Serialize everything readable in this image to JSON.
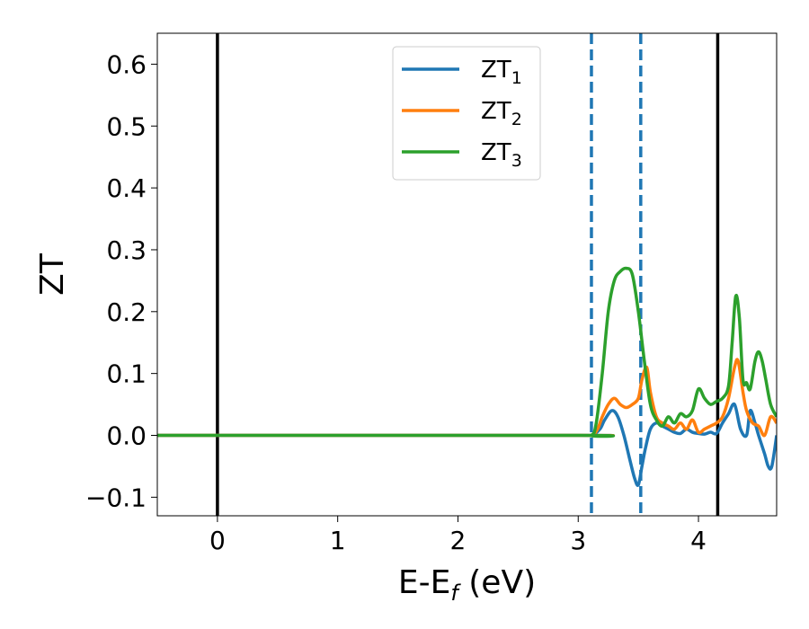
{
  "chart_data": {
    "type": "line",
    "xlabel": "E-E",
    "xlabel_sub": "f",
    "xlabel_unit": " (eV)",
    "ylabel": "ZT",
    "xlim": [
      -0.5,
      4.65
    ],
    "ylim": [
      -0.13,
      0.65
    ],
    "xticks": [
      0,
      1,
      2,
      3,
      4
    ],
    "xtick_labels": [
      "0",
      "1",
      "2",
      "3",
      "4"
    ],
    "yticks": [
      -0.1,
      0.0,
      0.1,
      0.2,
      0.3,
      0.4,
      0.5,
      0.6
    ],
    "ytick_labels": [
      "−0.1",
      "0.0",
      "0.1",
      "0.2",
      "0.3",
      "0.4",
      "0.5",
      "0.6"
    ],
    "grid": false,
    "legend_position": "top-center",
    "solid_vlines": [
      0.0,
      4.16
    ],
    "dashed_vlines": [
      3.11,
      3.52
    ],
    "series": [
      {
        "name": "ZT",
        "name_sub": "1",
        "color": "#1f77b4",
        "x": [
          -0.5,
          3.0,
          3.11,
          3.18,
          3.22,
          3.28,
          3.33,
          3.38,
          3.43,
          3.47,
          3.5,
          3.53,
          3.56,
          3.6,
          3.65,
          3.7,
          3.75,
          3.8,
          3.85,
          3.9,
          3.95,
          4.0,
          4.05,
          4.1,
          4.15,
          4.2,
          4.25,
          4.3,
          4.35,
          4.4,
          4.43,
          4.47,
          4.5,
          4.55,
          4.58,
          4.61,
          4.65
        ],
        "y": [
          0.0,
          0.0,
          0.0,
          0.01,
          0.025,
          0.04,
          0.03,
          0.0,
          -0.04,
          -0.07,
          -0.08,
          -0.05,
          -0.02,
          0.01,
          0.02,
          0.015,
          0.01,
          0.005,
          0.003,
          0.01,
          0.005,
          0.003,
          0.002,
          0.005,
          0.003,
          0.02,
          0.035,
          0.05,
          0.01,
          0.0,
          0.04,
          0.02,
          0.0,
          -0.03,
          -0.05,
          -0.05,
          0.0
        ]
      },
      {
        "name": "ZT",
        "name_sub": "2",
        "color": "#ff7f0e",
        "x": [
          -0.5,
          3.0,
          3.11,
          3.16,
          3.2,
          3.25,
          3.3,
          3.35,
          3.4,
          3.45,
          3.5,
          3.53,
          3.57,
          3.6,
          3.65,
          3.7,
          3.75,
          3.8,
          3.85,
          3.9,
          3.95,
          4.0,
          4.05,
          4.1,
          4.15,
          4.2,
          4.25,
          4.3,
          4.33,
          4.37,
          4.4,
          4.45,
          4.5,
          4.55,
          4.6,
          4.65
        ],
        "y": [
          0.0,
          0.0,
          0.0,
          0.01,
          0.03,
          0.05,
          0.06,
          0.05,
          0.045,
          0.05,
          0.06,
          0.09,
          0.11,
          0.07,
          0.03,
          0.02,
          0.015,
          0.01,
          0.02,
          0.01,
          0.025,
          0.005,
          0.01,
          0.015,
          0.02,
          0.03,
          0.06,
          0.11,
          0.12,
          0.07,
          0.04,
          0.02,
          0.015,
          0.0,
          0.03,
          0.02
        ]
      },
      {
        "name": "ZT",
        "name_sub": "3",
        "color": "#2ca02c",
        "x": [
          -0.5,
          3.0,
          3.11,
          3.15,
          3.2,
          3.25,
          3.3,
          3.35,
          3.4,
          3.45,
          3.5,
          3.55,
          3.6,
          3.65,
          3.7,
          3.75,
          3.8,
          3.85,
          3.9,
          3.95,
          4.0,
          4.05,
          4.1,
          4.15,
          4.2,
          4.25,
          4.28,
          4.31,
          4.34,
          4.37,
          4.4,
          4.43,
          4.47,
          4.5,
          4.53,
          4.56,
          4.6,
          4.65
        ],
        "y": [
          0.0,
          0.0,
          0.0,
          0.02,
          0.1,
          0.2,
          0.25,
          0.265,
          0.27,
          0.26,
          0.2,
          0.12,
          0.05,
          0.025,
          0.015,
          0.03,
          0.02,
          0.035,
          0.03,
          0.04,
          0.075,
          0.06,
          0.05,
          0.055,
          0.06,
          0.08,
          0.15,
          0.225,
          0.19,
          0.09,
          0.085,
          0.075,
          0.12,
          0.135,
          0.12,
          0.09,
          0.05,
          0.03
        ]
      }
    ]
  }
}
